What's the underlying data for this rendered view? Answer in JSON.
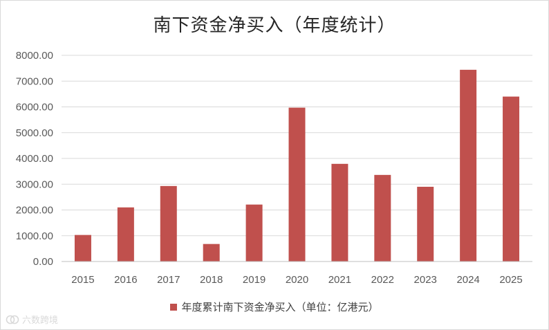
{
  "chart_data": {
    "type": "bar",
    "title": "南下资金净买入（年度统计）",
    "categories": [
      "2015",
      "2016",
      "2017",
      "2018",
      "2019",
      "2020",
      "2021",
      "2022",
      "2023",
      "2024",
      "2025"
    ],
    "series": [
      {
        "name": "年度累计南下资金净买入（单位：亿港元）",
        "values": [
          1030,
          2100,
          2930,
          680,
          2210,
          5970,
          3790,
          3360,
          2900,
          7440,
          6400
        ],
        "color": "#c0504d"
      }
    ],
    "ylim": [
      0,
      8000
    ],
    "yticks": [
      "0.00",
      "1000.00",
      "2000.00",
      "3000.00",
      "4000.00",
      "5000.00",
      "6000.00",
      "7000.00",
      "8000.00"
    ],
    "grid": true,
    "legend_position": "bottom"
  },
  "watermark": {
    "text": "六数跨境",
    "icon": "logo-icon"
  }
}
